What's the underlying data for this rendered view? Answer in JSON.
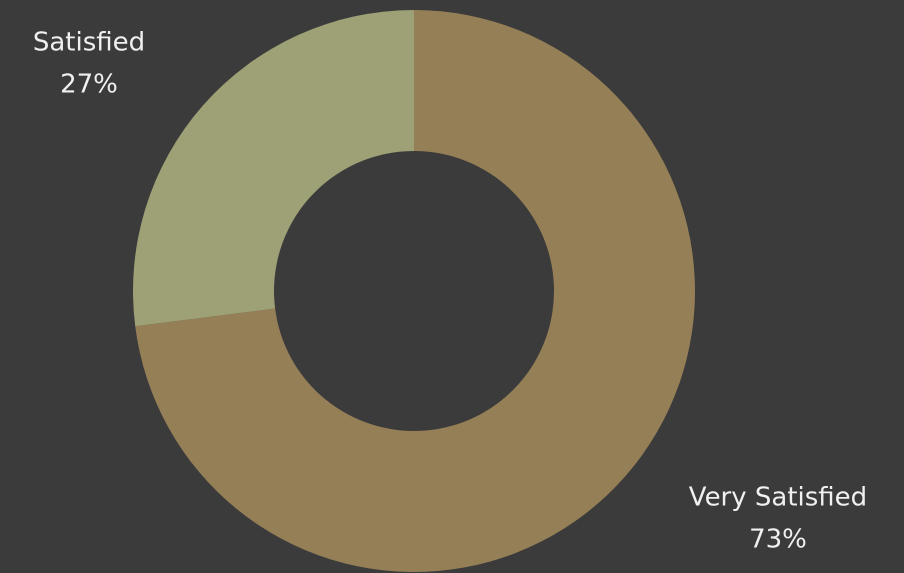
{
  "chart_data": {
    "type": "donut",
    "categories": [
      "Very Satisfied",
      "Satisfied"
    ],
    "values": [
      73,
      27
    ],
    "value_labels": [
      "73%",
      "27%"
    ],
    "colors": [
      "#957f57",
      "#9ea075"
    ]
  }
}
